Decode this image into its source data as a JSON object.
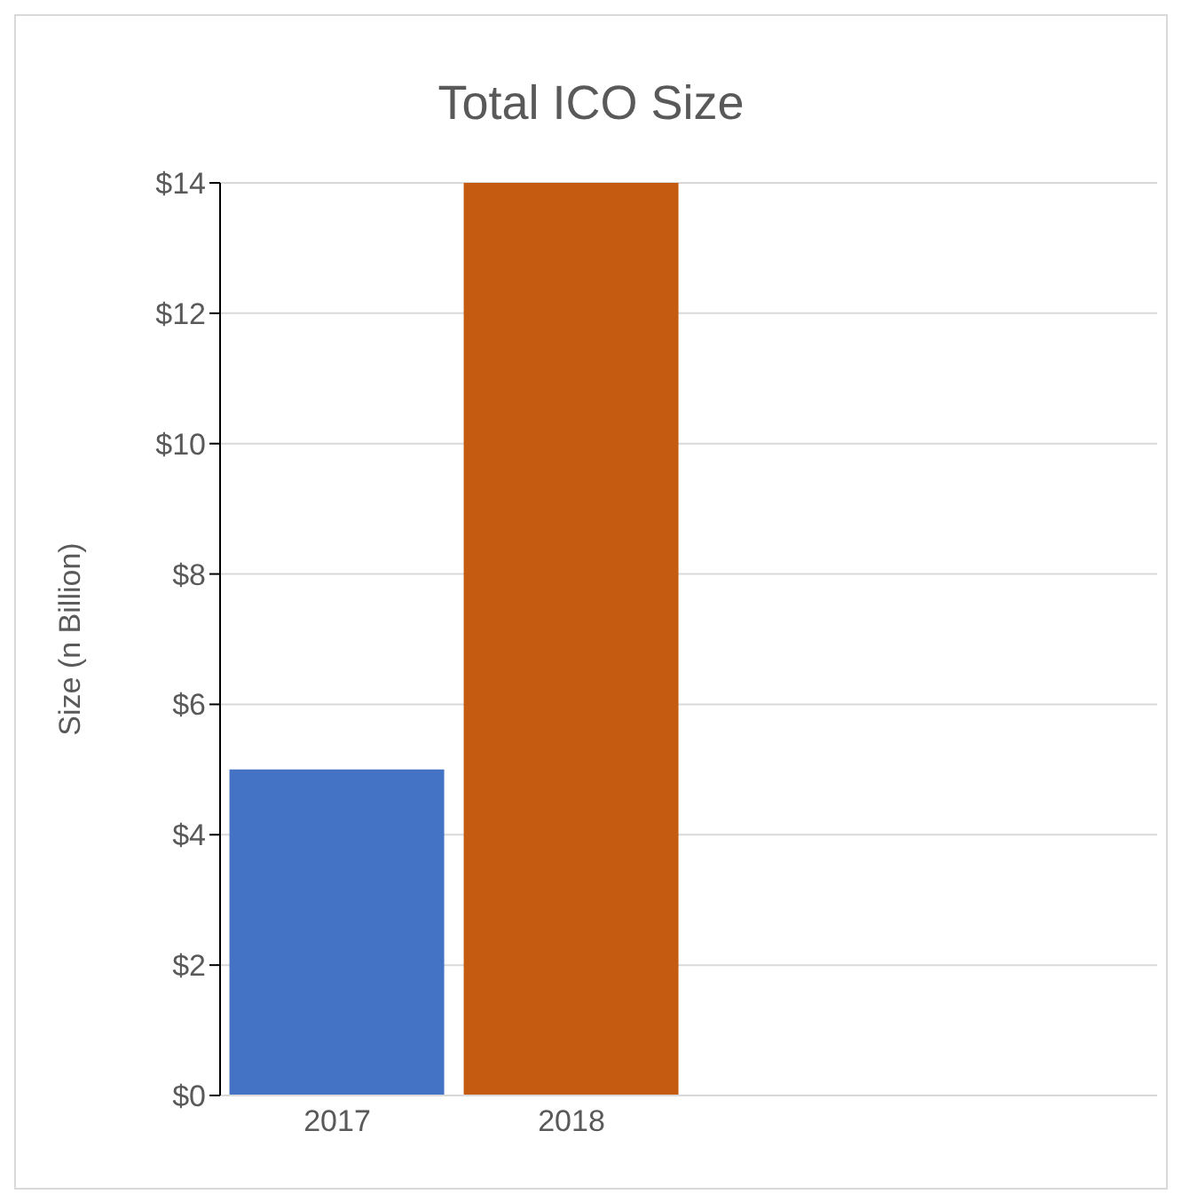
{
  "chart_data": {
    "type": "bar",
    "title": "Total ICO Size",
    "ylabel": "Size  (n Billion)",
    "categories": [
      "2017",
      "2018",
      null,
      null
    ],
    "values": [
      5,
      14,
      null,
      null
    ],
    "colors": [
      "#4472c4",
      "#c55a11",
      null,
      null
    ],
    "ylim": [
      0,
      14
    ],
    "yticks": [
      {
        "value": 0,
        "label": "$0"
      },
      {
        "value": 2,
        "label": "$2"
      },
      {
        "value": 4,
        "label": "$4"
      },
      {
        "value": 6,
        "label": "$6"
      },
      {
        "value": 8,
        "label": "$8"
      },
      {
        "value": 10,
        "label": "$10"
      },
      {
        "value": 12,
        "label": "$12"
      },
      {
        "value": 14,
        "label": "$14"
      }
    ],
    "grid": "y",
    "legend": false
  }
}
